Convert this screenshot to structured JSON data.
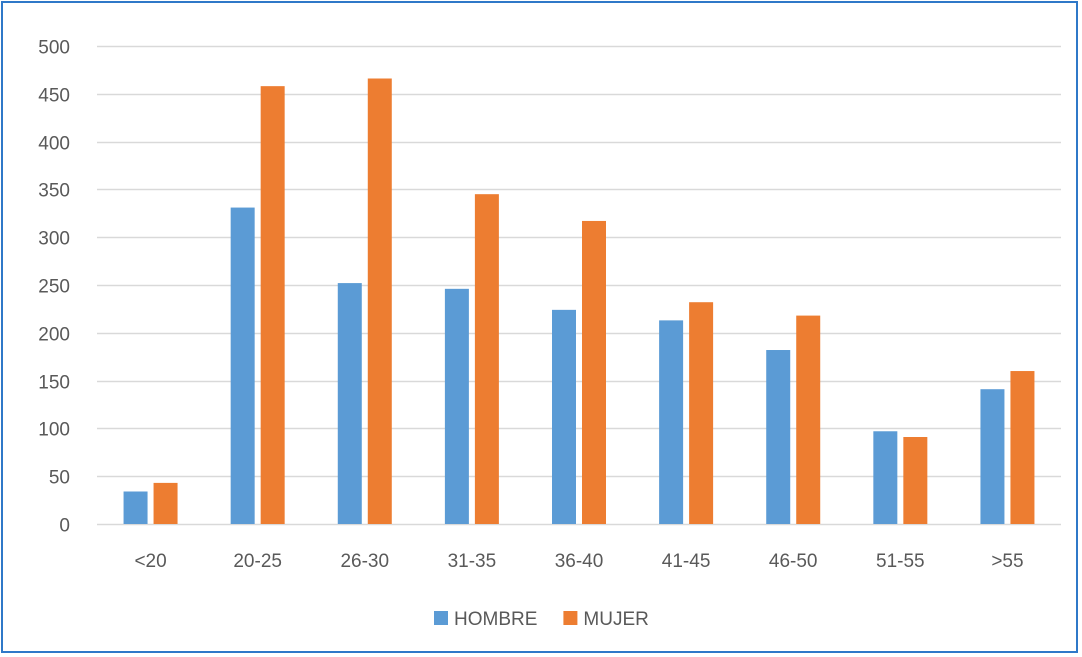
{
  "chart_data": {
    "type": "bar",
    "title": "",
    "xlabel": "",
    "ylabel": "",
    "categories": [
      "<20",
      "20-25",
      "26-30",
      "31-35",
      "36-40",
      "41-45",
      "46-50",
      "51-55",
      ">55"
    ],
    "series": [
      {
        "name": "HOMBRE",
        "color": "#5b9bd5",
        "values": [
          34,
          331,
          252,
          246,
          224,
          213,
          182,
          97,
          141
        ]
      },
      {
        "name": "MUJER",
        "color": "#ed7d31",
        "values": [
          43,
          458,
          466,
          345,
          317,
          232,
          218,
          91,
          160
        ]
      }
    ],
    "ylim": [
      0,
      500
    ],
    "yticks": [
      "0",
      "50",
      "100",
      "150",
      "200",
      "250",
      "300",
      "350",
      "400",
      "450",
      "500"
    ],
    "grid": true,
    "gridline_color": "#d9d9d9",
    "legend_position": "bottom",
    "frame_color": "#2f78c8"
  }
}
